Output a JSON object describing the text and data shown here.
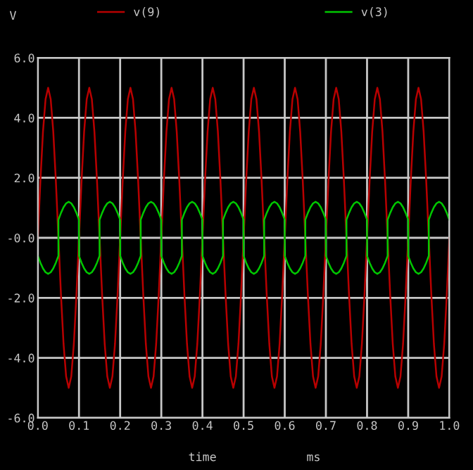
{
  "chart_data": {
    "type": "line",
    "ylabel": "V",
    "xlabel": "time",
    "annotations": [
      "ms"
    ],
    "xlim": [
      0,
      1
    ],
    "ylim": [
      -6,
      6
    ],
    "xticks": [
      {
        "value": 0,
        "label": "0.0"
      },
      {
        "value": 0.1,
        "label": "0.1"
      },
      {
        "value": 0.2,
        "label": "0.2"
      },
      {
        "value": 0.3,
        "label": "0.3"
      },
      {
        "value": 0.4,
        "label": "0.4"
      },
      {
        "value": 0.5,
        "label": "0.5"
      },
      {
        "value": 0.6,
        "label": "0.6"
      },
      {
        "value": 0.7,
        "label": "0.7"
      },
      {
        "value": 0.8,
        "label": "0.8"
      },
      {
        "value": 0.9,
        "label": "0.9"
      },
      {
        "value": 1,
        "label": "1.0"
      }
    ],
    "yticks": [
      {
        "value": -6,
        "label": "-6.0"
      },
      {
        "value": -4,
        "label": "-4.0"
      },
      {
        "value": -2,
        "label": "-2.0"
      },
      {
        "value": 0,
        "label": "-0.0"
      },
      {
        "value": 2,
        "label": "2.0"
      },
      {
        "value": 4,
        "label": "4.0"
      },
      {
        "value": 6,
        "label": "6.0"
      }
    ],
    "grid": true,
    "legend": "top",
    "marker": "none",
    "line_style": "solid",
    "series": [
      {
        "name": "v(9)",
        "color": "#b80000",
        "x": [
          0,
          0.00625,
          0.0125,
          0.01875,
          0.025,
          0.03125,
          0.0375,
          0.04375,
          0.05,
          0.05625,
          0.0625,
          0.06875,
          0.075,
          0.08125,
          0.0875,
          0.09375,
          0.1,
          0.10625,
          0.1125,
          0.11875,
          0.125,
          0.13125,
          0.1375,
          0.14375,
          0.15,
          0.15625,
          0.1625,
          0.16875,
          0.175,
          0.18125,
          0.1875,
          0.19375,
          0.2,
          0.20625,
          0.2125,
          0.21875,
          0.225,
          0.23125,
          0.2375,
          0.24375,
          0.25,
          0.25625,
          0.2625,
          0.26875,
          0.275,
          0.28125,
          0.2875,
          0.29375,
          0.3,
          0.30625,
          0.3125,
          0.31875,
          0.325,
          0.33125,
          0.3375,
          0.34375,
          0.35,
          0.35625,
          0.3625,
          0.36875,
          0.375,
          0.38125,
          0.3875,
          0.39375,
          0.4,
          0.40625,
          0.4125,
          0.41875,
          0.425,
          0.43125,
          0.4375,
          0.44375,
          0.45,
          0.45625,
          0.4625,
          0.46875,
          0.475,
          0.48125,
          0.4875,
          0.49375,
          0.5,
          0.50625,
          0.5125,
          0.51875,
          0.525,
          0.53125,
          0.5375,
          0.54375,
          0.55,
          0.55625,
          0.5625,
          0.56875,
          0.575,
          0.58125,
          0.5875,
          0.59375,
          0.6,
          0.60625,
          0.6125,
          0.61875,
          0.625,
          0.63125,
          0.6375,
          0.64375,
          0.65,
          0.65625,
          0.6625,
          0.66875,
          0.675,
          0.68125,
          0.6875,
          0.69375,
          0.7,
          0.70625,
          0.7125,
          0.71875,
          0.725,
          0.73125,
          0.7375,
          0.74375,
          0.75,
          0.75625,
          0.7625,
          0.76875,
          0.775,
          0.78125,
          0.7875,
          0.79375,
          0.8,
          0.80625,
          0.8125,
          0.81875,
          0.825,
          0.83125,
          0.8375,
          0.84375,
          0.85,
          0.85625,
          0.8625,
          0.86875,
          0.875,
          0.88125,
          0.8875,
          0.89375,
          0.9,
          0.90625,
          0.9125,
          0.91875,
          0.925,
          0.93125,
          0.9375,
          0.94375,
          0.95,
          0.95625,
          0.9625,
          0.96875,
          0.975,
          0.98125,
          0.9875,
          0.99375,
          1
        ],
        "values": [
          0,
          1.91,
          3.54,
          4.62,
          5,
          4.62,
          3.54,
          1.91,
          0,
          -1.91,
          -3.54,
          -4.62,
          -5,
          -4.62,
          -3.54,
          -1.91,
          0,
          1.91,
          3.54,
          4.62,
          5,
          4.62,
          3.54,
          1.91,
          0,
          -1.91,
          -3.54,
          -4.62,
          -5,
          -4.62,
          -3.54,
          -1.91,
          0,
          1.91,
          3.54,
          4.62,
          5,
          4.62,
          3.54,
          1.91,
          0,
          -1.91,
          -3.54,
          -4.62,
          -5,
          -4.62,
          -3.54,
          -1.91,
          0,
          1.91,
          3.54,
          4.62,
          5,
          4.62,
          3.54,
          1.91,
          0,
          -1.91,
          -3.54,
          -4.62,
          -5,
          -4.62,
          -3.54,
          -1.91,
          0,
          1.91,
          3.54,
          4.62,
          5,
          4.62,
          3.54,
          1.91,
          0,
          -1.91,
          -3.54,
          -4.62,
          -5,
          -4.62,
          -3.54,
          -1.91,
          0,
          1.91,
          3.54,
          4.62,
          5,
          4.62,
          3.54,
          1.91,
          0,
          -1.91,
          -3.54,
          -4.62,
          -5,
          -4.62,
          -3.54,
          -1.91,
          0,
          1.91,
          3.54,
          4.62,
          5,
          4.62,
          3.54,
          1.91,
          0,
          -1.91,
          -3.54,
          -4.62,
          -5,
          -4.62,
          -3.54,
          -1.91,
          0,
          1.91,
          3.54,
          4.62,
          5,
          4.62,
          3.54,
          1.91,
          0,
          -1.91,
          -3.54,
          -4.62,
          -5,
          -4.62,
          -3.54,
          -1.91,
          0,
          1.91,
          3.54,
          4.62,
          5,
          4.62,
          3.54,
          1.91,
          0,
          -1.91,
          -3.54,
          -4.62,
          -5,
          -4.62,
          -3.54,
          -1.91,
          0,
          1.91,
          3.54,
          4.62,
          5,
          4.62,
          3.54,
          1.91,
          0,
          -1.91,
          -3.54,
          -4.62,
          -5,
          -4.62,
          -3.54,
          -1.91,
          0
        ]
      },
      {
        "name": "v(3)",
        "color": "#00c800",
        "x": [
          0,
          0.00625,
          0.0125,
          0.01875,
          0.025,
          0.03125,
          0.0375,
          0.04375,
          0.05,
          0.05,
          0.05625,
          0.0625,
          0.06875,
          0.075,
          0.08125,
          0.0875,
          0.09375,
          0.1,
          0.1,
          0.10625,
          0.1125,
          0.11875,
          0.125,
          0.13125,
          0.1375,
          0.14375,
          0.15,
          0.15,
          0.15625,
          0.1625,
          0.16875,
          0.175,
          0.18125,
          0.1875,
          0.19375,
          0.2,
          0.2,
          0.20625,
          0.2125,
          0.21875,
          0.225,
          0.23125,
          0.2375,
          0.24375,
          0.25,
          0.25,
          0.25625,
          0.2625,
          0.26875,
          0.275,
          0.28125,
          0.2875,
          0.29375,
          0.3,
          0.3,
          0.30625,
          0.3125,
          0.31875,
          0.325,
          0.33125,
          0.3375,
          0.34375,
          0.35,
          0.35,
          0.35625,
          0.3625,
          0.36875,
          0.375,
          0.38125,
          0.3875,
          0.39375,
          0.4,
          0.4,
          0.40625,
          0.4125,
          0.41875,
          0.425,
          0.43125,
          0.4375,
          0.44375,
          0.45,
          0.45,
          0.45625,
          0.4625,
          0.46875,
          0.475,
          0.48125,
          0.4875,
          0.49375,
          0.5,
          0.5,
          0.50625,
          0.5125,
          0.51875,
          0.525,
          0.53125,
          0.5375,
          0.54375,
          0.55,
          0.55,
          0.55625,
          0.5625,
          0.56875,
          0.575,
          0.58125,
          0.5875,
          0.59375,
          0.6,
          0.6,
          0.60625,
          0.6125,
          0.61875,
          0.625,
          0.63125,
          0.6375,
          0.64375,
          0.65,
          0.65,
          0.65625,
          0.6625,
          0.66875,
          0.675,
          0.68125,
          0.6875,
          0.69375,
          0.7,
          0.7,
          0.70625,
          0.7125,
          0.71875,
          0.725,
          0.73125,
          0.7375,
          0.74375,
          0.75,
          0.75,
          0.75625,
          0.7625,
          0.76875,
          0.775,
          0.78125,
          0.7875,
          0.79375,
          0.8,
          0.8,
          0.80625,
          0.8125,
          0.81875,
          0.825,
          0.83125,
          0.8375,
          0.84375,
          0.85,
          0.85,
          0.85625,
          0.8625,
          0.86875,
          0.875,
          0.88125,
          0.8875,
          0.89375,
          0.9,
          0.9,
          0.90625,
          0.9125,
          0.91875,
          0.925,
          0.93125,
          0.9375,
          0.94375,
          0.95,
          0.95,
          0.95625,
          0.9625,
          0.96875,
          0.975,
          0.98125,
          0.9875,
          0.99375,
          1
        ],
        "values": [
          -0.6,
          -0.83,
          -1.02,
          -1.15,
          -1.2,
          -1.15,
          -1.02,
          -0.83,
          -0.6,
          0.6,
          0.83,
          1.02,
          1.15,
          1.2,
          1.15,
          1.02,
          0.83,
          0.6,
          -0.6,
          -0.83,
          -1.02,
          -1.15,
          -1.2,
          -1.15,
          -1.02,
          -0.83,
          -0.6,
          0.6,
          0.83,
          1.02,
          1.15,
          1.2,
          1.15,
          1.02,
          0.83,
          0.6,
          -0.6,
          -0.83,
          -1.02,
          -1.15,
          -1.2,
          -1.15,
          -1.02,
          -0.83,
          -0.6,
          0.6,
          0.83,
          1.02,
          1.15,
          1.2,
          1.15,
          1.02,
          0.83,
          0.6,
          -0.6,
          -0.83,
          -1.02,
          -1.15,
          -1.2,
          -1.15,
          -1.02,
          -0.83,
          -0.6,
          0.6,
          0.83,
          1.02,
          1.15,
          1.2,
          1.15,
          1.02,
          0.83,
          0.6,
          -0.6,
          -0.83,
          -1.02,
          -1.15,
          -1.2,
          -1.15,
          -1.02,
          -0.83,
          -0.6,
          0.6,
          0.83,
          1.02,
          1.15,
          1.2,
          1.15,
          1.02,
          0.83,
          0.6,
          -0.6,
          -0.83,
          -1.02,
          -1.15,
          -1.2,
          -1.15,
          -1.02,
          -0.83,
          -0.6,
          0.6,
          0.83,
          1.02,
          1.15,
          1.2,
          1.15,
          1.02,
          0.83,
          0.6,
          -0.6,
          -0.83,
          -1.02,
          -1.15,
          -1.2,
          -1.15,
          -1.02,
          -0.83,
          -0.6,
          0.6,
          0.83,
          1.02,
          1.15,
          1.2,
          1.15,
          1.02,
          0.83,
          0.6,
          -0.6,
          -0.83,
          -1.02,
          -1.15,
          -1.2,
          -1.15,
          -1.02,
          -0.83,
          -0.6,
          0.6,
          0.83,
          1.02,
          1.15,
          1.2,
          1.15,
          1.02,
          0.83,
          0.6,
          -0.6,
          -0.83,
          -1.02,
          -1.15,
          -1.2,
          -1.15,
          -1.02,
          -0.83,
          -0.6,
          0.6,
          0.83,
          1.02,
          1.15,
          1.2,
          1.15,
          1.02,
          0.83,
          0.6,
          -0.6,
          -0.83,
          -1.02,
          -1.15,
          -1.2,
          -1.15,
          -1.02,
          -0.83,
          -0.6,
          0.6,
          0.83,
          1.02,
          1.15,
          1.2,
          1.15,
          1.02,
          0.83,
          0.6
        ]
      }
    ]
  }
}
